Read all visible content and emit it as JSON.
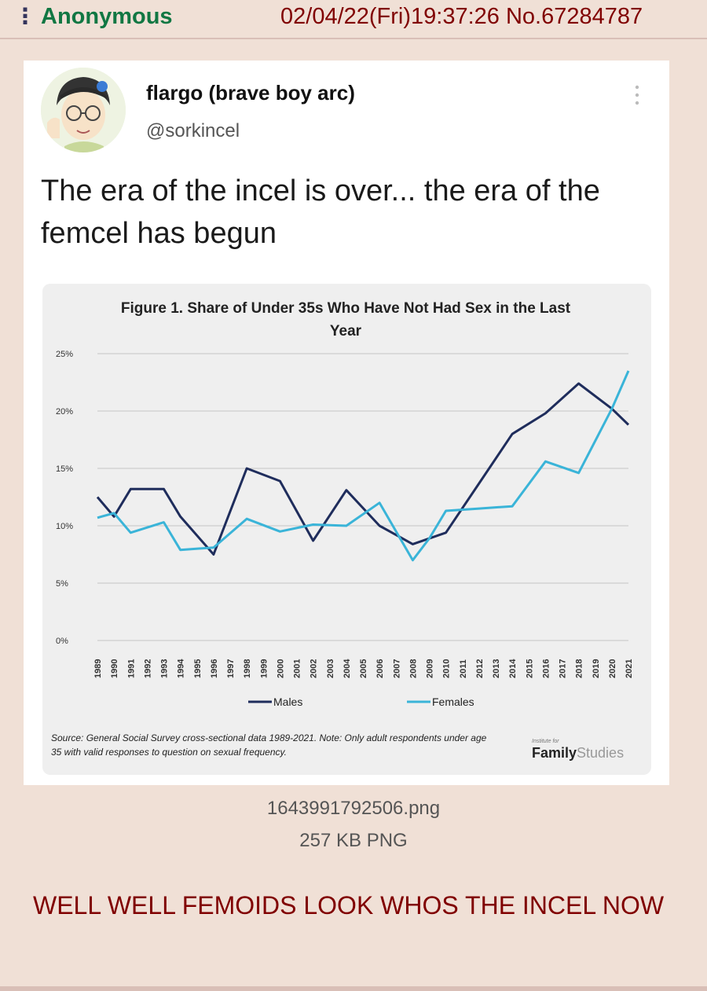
{
  "post": {
    "name": "Anonymous",
    "datetime": "02/04/22(Fri)19:37:26 No.67284787",
    "file": {
      "filename": "1643991792506.png",
      "size": "257 KB PNG"
    },
    "comment": "WELL WELL FEMOIDS LOOK WHOS THE INCEL NOW"
  },
  "tweet": {
    "display_name": "flargo (brave boy arc)",
    "handle": "@sorkincel",
    "text": "The era of the incel is over... the era of the femcel has begun",
    "avatar_icon": "anime-avatar-icon",
    "menu_icon": "more-vertical-icon"
  },
  "chart_data": {
    "type": "line",
    "title": "Figure 1. Share of Under 35s Who Have Not Had Sex in the Last Year",
    "x": [
      "1989",
      "1990",
      "1991",
      "1992",
      "1993",
      "1994",
      "1995",
      "1996",
      "1997",
      "1998",
      "1999",
      "2000",
      "2001",
      "2002",
      "2003",
      "2004",
      "2005",
      "2006",
      "2007",
      "2008",
      "2009",
      "2010",
      "2011",
      "2012",
      "2013",
      "2014",
      "2015",
      "2016",
      "2017",
      "2018",
      "2019",
      "2020",
      "2021"
    ],
    "y_ticks": [
      "0%",
      "5%",
      "10%",
      "15%",
      "20%",
      "25%"
    ],
    "ylim": [
      0,
      25
    ],
    "series": [
      {
        "name": "Males",
        "color": "#1f2d5c",
        "points": [
          [
            1989,
            12.5
          ],
          [
            1990,
            10.8
          ],
          [
            1991,
            13.2
          ],
          [
            1993,
            13.2
          ],
          [
            1994,
            10.8
          ],
          [
            1996,
            7.5
          ],
          [
            1998,
            15.0
          ],
          [
            2000,
            13.9
          ],
          [
            2002,
            8.7
          ],
          [
            2004,
            13.1
          ],
          [
            2006,
            10.0
          ],
          [
            2008,
            8.4
          ],
          [
            2010,
            9.4
          ],
          [
            2012,
            13.7
          ],
          [
            2014,
            18.0
          ],
          [
            2016,
            19.8
          ],
          [
            2018,
            22.4
          ],
          [
            2020,
            20.2
          ],
          [
            2021,
            18.8
          ]
        ]
      },
      {
        "name": "Females",
        "color": "#3ab4d8",
        "points": [
          [
            1989,
            10.7
          ],
          [
            1990,
            11.1
          ],
          [
            1991,
            9.4
          ],
          [
            1993,
            10.3
          ],
          [
            1994,
            7.9
          ],
          [
            1996,
            8.1
          ],
          [
            1998,
            10.6
          ],
          [
            2000,
            9.5
          ],
          [
            2002,
            10.1
          ],
          [
            2004,
            10.0
          ],
          [
            2006,
            12.0
          ],
          [
            2008,
            7.0
          ],
          [
            2009,
            8.9
          ],
          [
            2010,
            11.3
          ],
          [
            2012,
            11.5
          ],
          [
            2014,
            11.7
          ],
          [
            2016,
            15.6
          ],
          [
            2018,
            14.6
          ],
          [
            2020,
            20.2
          ],
          [
            2021,
            23.5
          ]
        ]
      }
    ],
    "legend": [
      "Males",
      "Females"
    ],
    "legend_position": "bottom",
    "grid": true,
    "source": "Source: General Social Survey cross-sectional data 1989-2021. Note: Only adult respondents under age 35 with valid responses to question on sexual frequency.",
    "brand": {
      "small": "Institute for",
      "bold": "Family",
      "light": "Studies"
    }
  }
}
